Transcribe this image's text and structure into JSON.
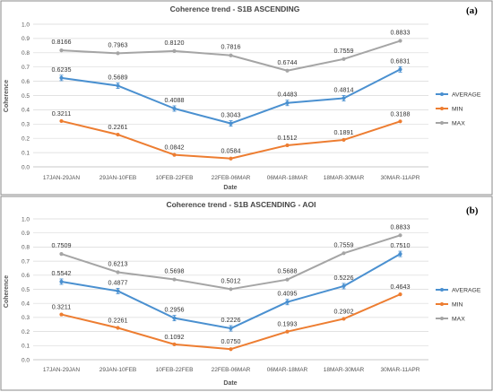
{
  "chart_data": [
    {
      "type": "line",
      "panel_label": "(a)",
      "title": "Coherence trend - S1B ASCENDING",
      "xlabel": "Date",
      "ylabel": "Coherence",
      "ylim": [
        0,
        1.0
      ],
      "yticks": [
        "0.0",
        "0.1",
        "0.2",
        "0.3",
        "0.4",
        "0.5",
        "0.6",
        "0.7",
        "0.8",
        "0.9",
        "1.0"
      ],
      "grid": true,
      "legend_position": "right",
      "categories": [
        "17JAN-29JAN",
        "29JAN-10FEB",
        "10FEB-22FEB",
        "22FEB-06MAR",
        "06MAR-18MAR",
        "18MAR-30MAR",
        "30MAR-11APR"
      ],
      "series": [
        {
          "name": "AVERAGE",
          "color": "#4a90d0",
          "error_bars": true,
          "values": [
            0.6235,
            0.5689,
            0.4088,
            0.3043,
            0.4483,
            0.4814,
            0.6831
          ],
          "labels": [
            "0.6235",
            "0.5689",
            "0.4088",
            "0.3043",
            "0.4483",
            "0.4814",
            "0.6831"
          ]
        },
        {
          "name": "MIN",
          "color": "#ed7d31",
          "error_bars": false,
          "values": [
            0.3211,
            0.2261,
            0.0842,
            0.0584,
            0.1512,
            0.1891,
            0.3188
          ],
          "labels": [
            "0.3211",
            "0.2261",
            "0.0842",
            "0.0584",
            "0.1512",
            "0.1891",
            "0.3188"
          ]
        },
        {
          "name": "MAX",
          "color": "#a5a5a5",
          "error_bars": false,
          "values": [
            0.8166,
            0.7963,
            0.812,
            0.7816,
            0.6744,
            0.7559,
            0.8833
          ],
          "labels": [
            "0.8166",
            "0.7963",
            "0.8120",
            "0.7816",
            "0.6744",
            "0.7559",
            "0.8833"
          ]
        }
      ]
    },
    {
      "type": "line",
      "panel_label": "(b)",
      "title": "Coherence trend - S1B ASCENDING - AOI",
      "xlabel": "Date",
      "ylabel": "Coherence",
      "ylim": [
        0,
        1.0
      ],
      "yticks": [
        "0.0",
        "0.1",
        "0.2",
        "0.3",
        "0.4",
        "0.5",
        "0.6",
        "0.7",
        "0.8",
        "0.9",
        "1.0"
      ],
      "grid": true,
      "legend_position": "right",
      "categories": [
        "17JAN-29JAN",
        "29JAN-10FEB",
        "10FEB-22FEB",
        "22FEB-06MAR",
        "06MAR-18MAR",
        "18MAR-30MAR",
        "30MAR-11APR"
      ],
      "series": [
        {
          "name": "AVERAGE",
          "color": "#4a90d0",
          "error_bars": true,
          "values": [
            0.5542,
            0.4877,
            0.2956,
            0.2226,
            0.4095,
            0.5226,
            0.751
          ],
          "labels": [
            "0.5542",
            "0.4877",
            "0.2956",
            "0.2226",
            "0.4095",
            "0.5226",
            "0.7510"
          ]
        },
        {
          "name": "MIN",
          "color": "#ed7d31",
          "error_bars": false,
          "values": [
            0.3211,
            0.2261,
            0.1092,
            0.075,
            0.1993,
            0.2902,
            0.4643
          ],
          "labels": [
            "0.3211",
            "0.2261",
            "0.1092",
            "0.0750",
            "0.1993",
            "0.2902",
            "0.4643"
          ]
        },
        {
          "name": "MAX",
          "color": "#a5a5a5",
          "error_bars": false,
          "values": [
            0.7509,
            0.6213,
            0.5698,
            0.5012,
            0.5688,
            0.7559,
            0.8833
          ],
          "labels": [
            "0.7509",
            "0.6213",
            "0.5698",
            "0.5012",
            "0.5688",
            "0.7559",
            "0.8833"
          ]
        }
      ]
    }
  ]
}
